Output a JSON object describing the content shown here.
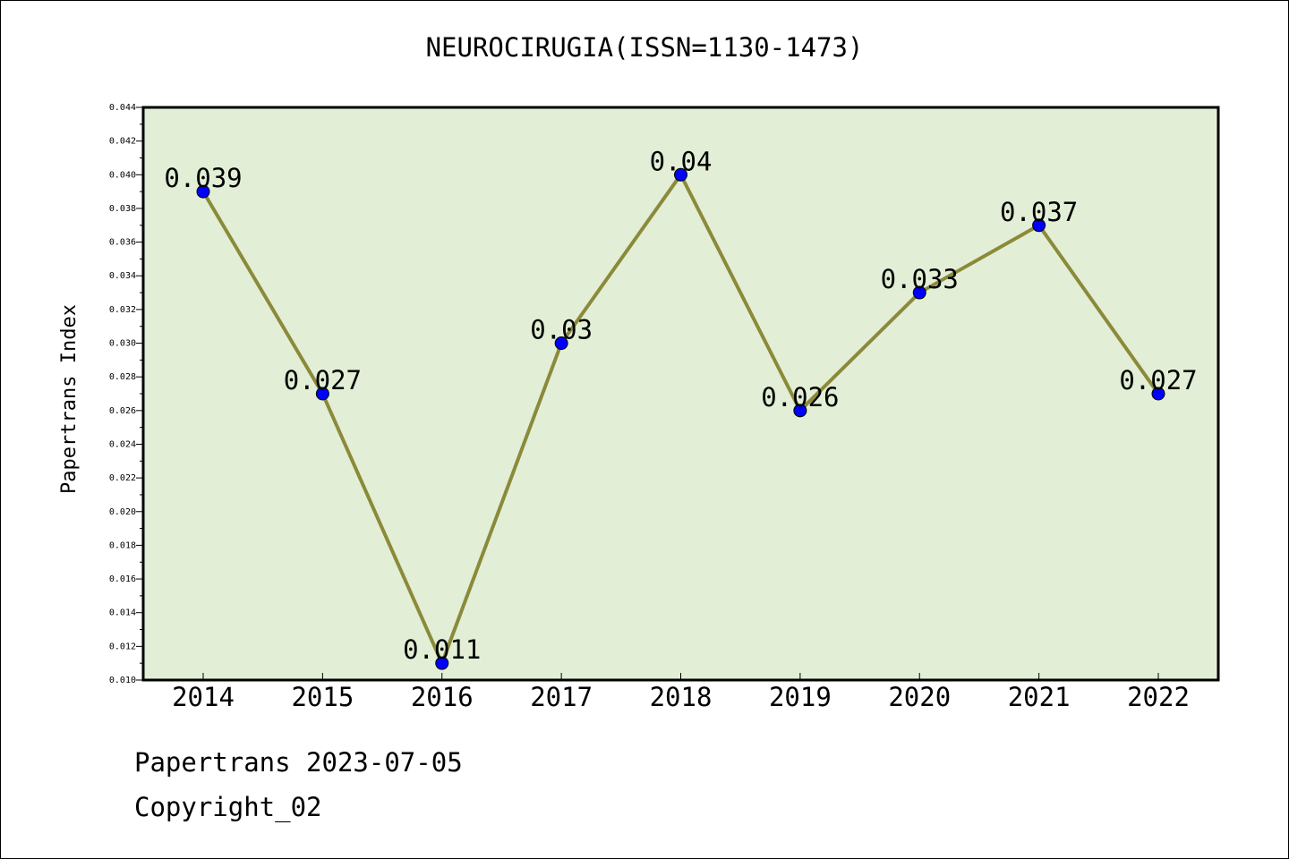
{
  "chart_data": {
    "type": "line",
    "title": "NEUROCIRUGIA(ISSN=1130-1473)",
    "xlabel": "",
    "ylabel": "Papertrans Index",
    "categories": [
      "2014",
      "2015",
      "2016",
      "2017",
      "2018",
      "2019",
      "2020",
      "2021",
      "2022"
    ],
    "series": [
      {
        "values": [
          0.039,
          0.027,
          0.011,
          0.03,
          0.04,
          0.026,
          0.033,
          0.037,
          0.027
        ],
        "labels": [
          "0.039",
          "0.027",
          "0.011",
          "0.03",
          "0.04",
          "0.026",
          "0.033",
          "0.037",
          "0.027"
        ],
        "line_color": "#8b8a3a",
        "marker_color": "#0000ff"
      }
    ],
    "ylim": [
      0.01,
      0.044
    ],
    "yticks": [
      "0.010",
      "0.012",
      "0.014",
      "0.016",
      "0.018",
      "0.020",
      "0.022",
      "0.024",
      "0.026",
      "0.028",
      "0.030",
      "0.032",
      "0.034",
      "0.036",
      "0.038",
      "0.040",
      "0.042",
      "0.044"
    ],
    "plot_background": "#e2efd6",
    "grid": false,
    "legend": "none"
  },
  "footer": {
    "date": "Papertrans 2023-07-05",
    "copyright": "Copyright_02"
  }
}
